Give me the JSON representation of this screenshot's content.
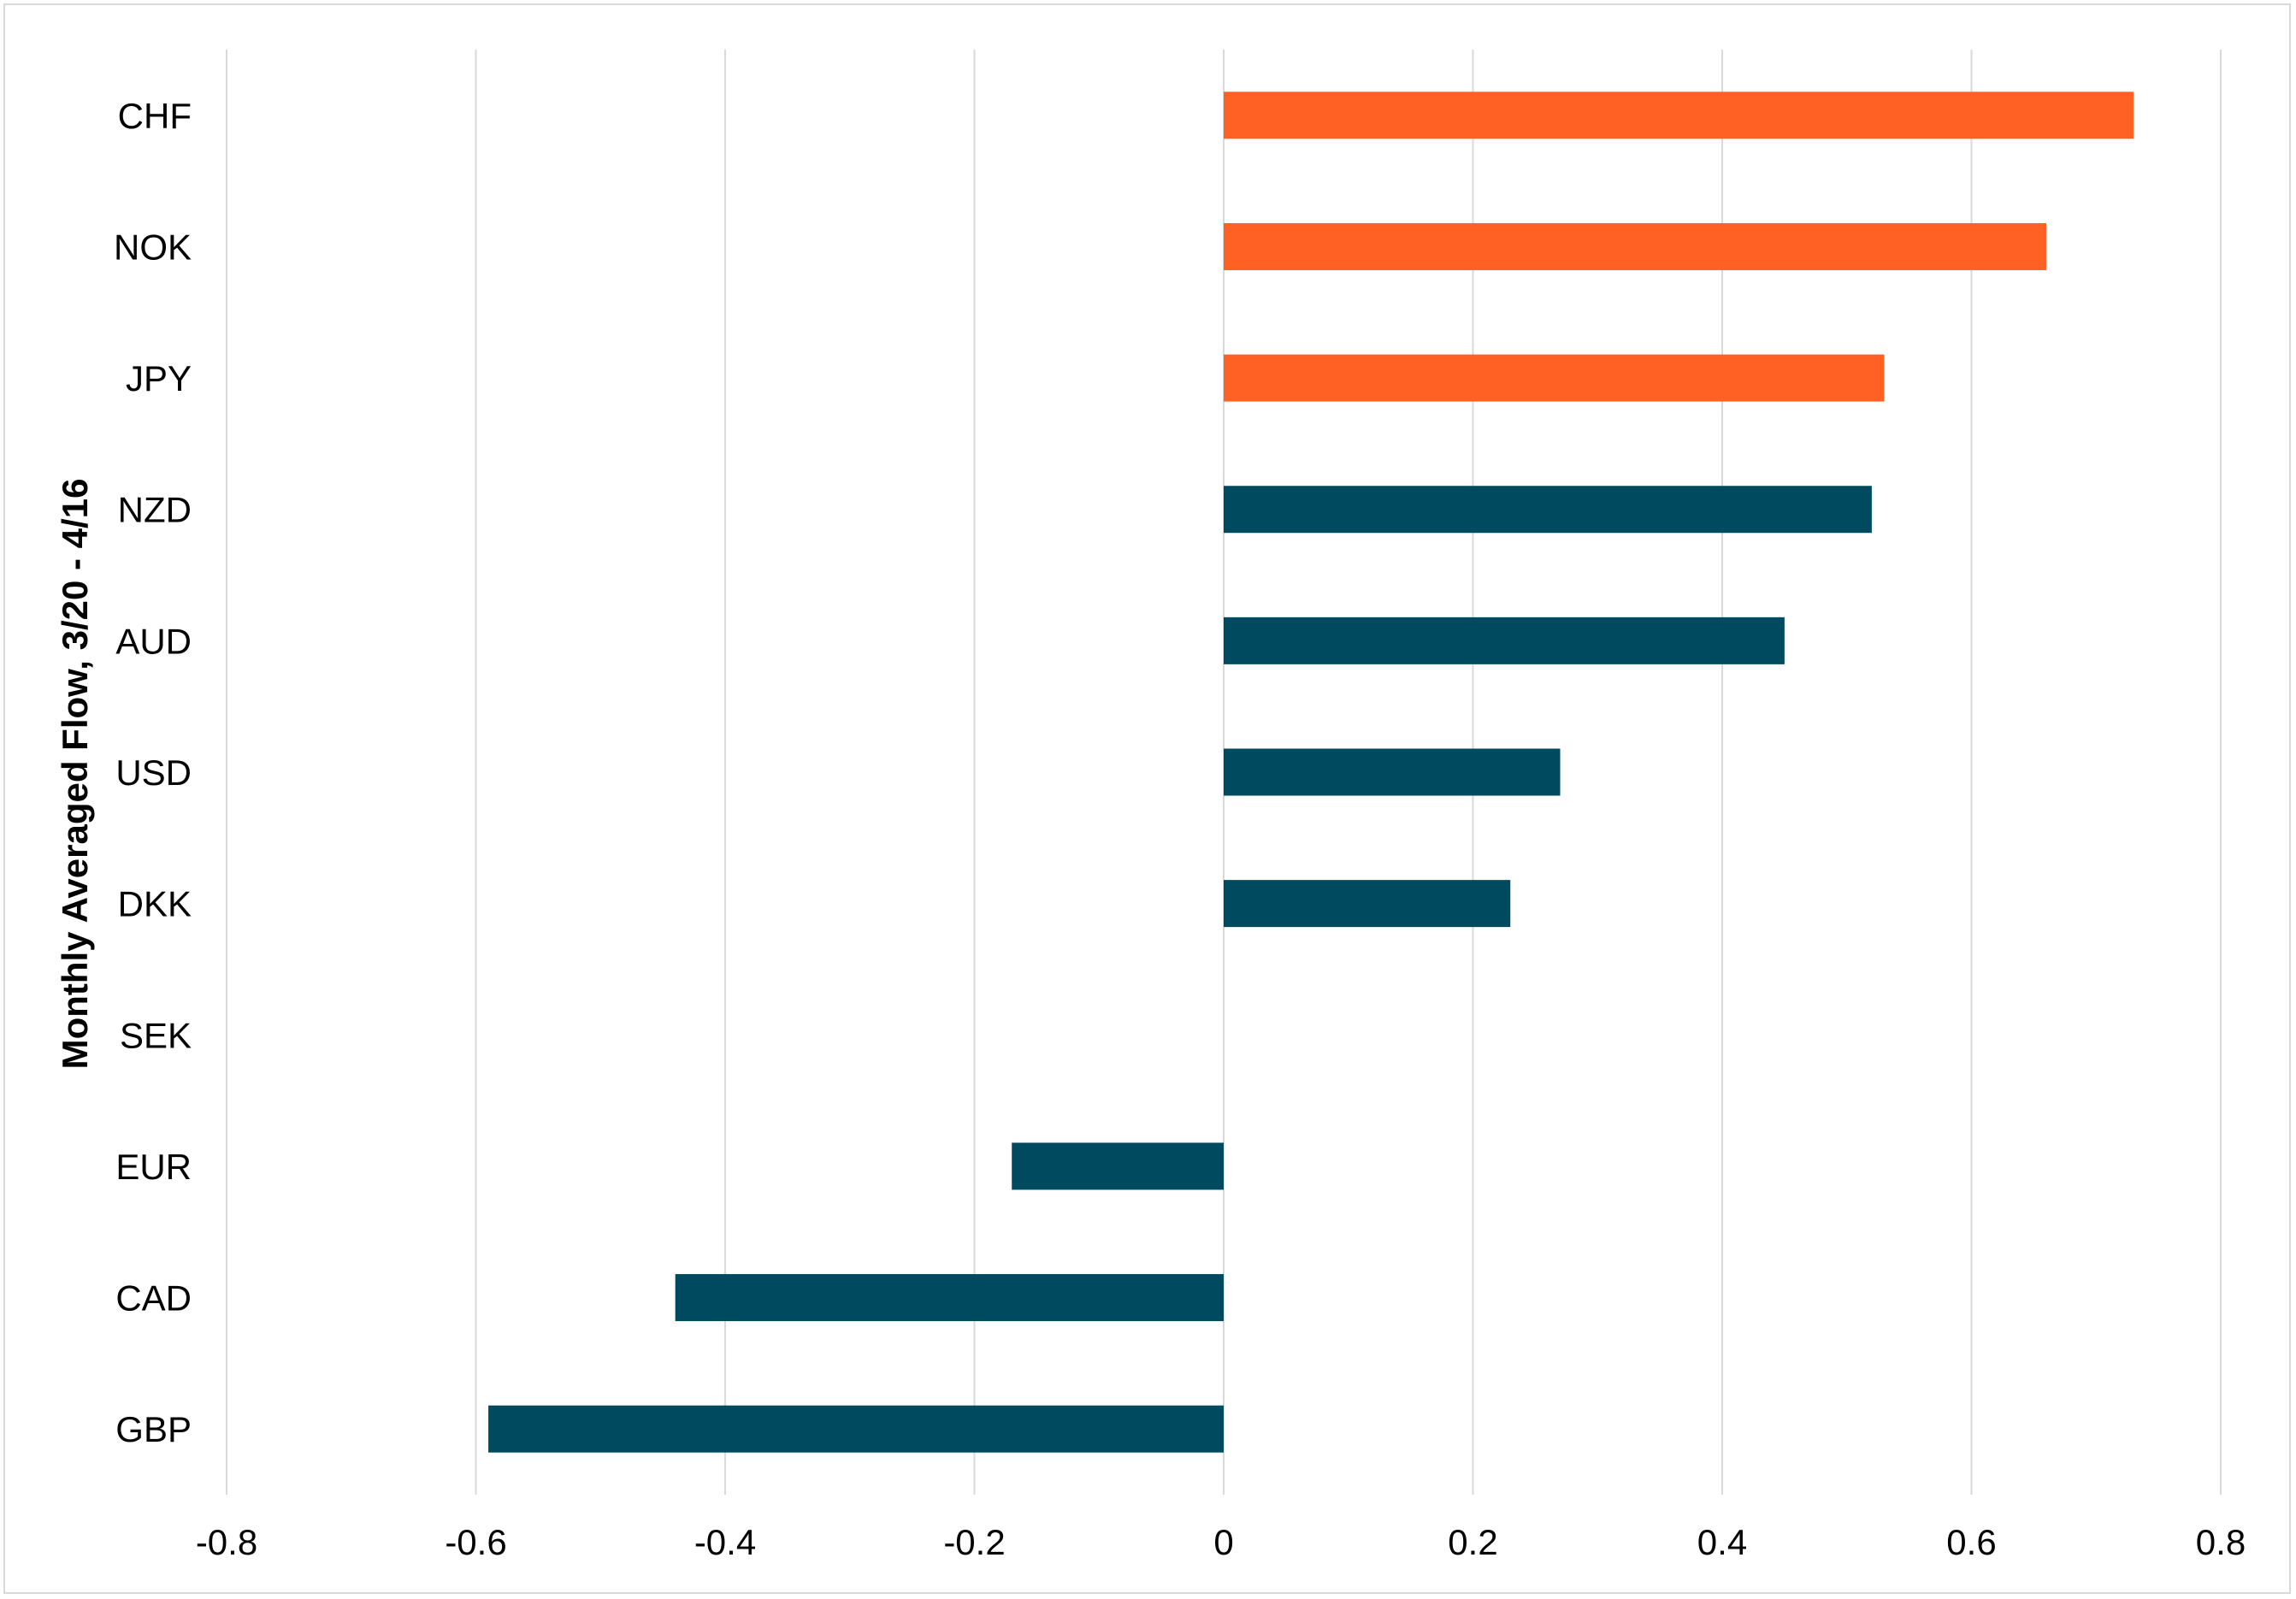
{
  "chart_data": {
    "type": "bar",
    "orientation": "horizontal",
    "title": "",
    "xlabel": "",
    "ylabel": "Monthly Averaged Flow, 3/20 - 4/16",
    "categories": [
      "CHF",
      "NOK",
      "JPY",
      "NZD",
      "AUD",
      "USD",
      "DKK",
      "SEK",
      "EUR",
      "CAD",
      "GBP"
    ],
    "values": [
      0.73,
      0.66,
      0.53,
      0.52,
      0.45,
      0.27,
      0.23,
      0.0,
      -0.17,
      -0.44,
      -0.59
    ],
    "bar_colors": [
      "#ff6124",
      "#ff6124",
      "#ff6124",
      "#004a60",
      "#004a60",
      "#004a60",
      "#004a60",
      "#004a60",
      "#004a60",
      "#004a60",
      "#004a60"
    ],
    "xlim": [
      -0.8,
      0.8
    ],
    "xticks": [
      -0.8,
      -0.6,
      -0.4,
      -0.2,
      0,
      0.2,
      0.4,
      0.6,
      0.8
    ],
    "xtick_labels": [
      "-0.8",
      "-0.6",
      "-0.4",
      "-0.2",
      "0",
      "0.2",
      "0.4",
      "0.6",
      "0.8"
    ],
    "grid": "vertical",
    "legend": "none"
  },
  "colors": {
    "highlight": "#ff6124",
    "base": "#004a60",
    "grid": "#d9d9d9"
  }
}
